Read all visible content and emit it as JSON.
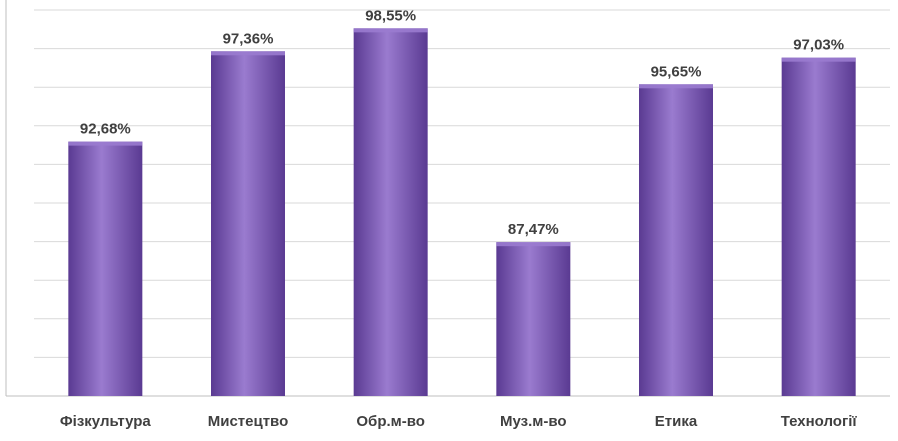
{
  "chart_data": {
    "type": "bar",
    "title": "",
    "xlabel": "",
    "ylabel": "",
    "categories": [
      "Фізкультура",
      "Мистецтво",
      "Обр.м-во",
      "Муз.м-во",
      "Етика",
      "Технології"
    ],
    "values": [
      92.68,
      97.36,
      98.55,
      87.47,
      95.65,
      97.03
    ],
    "value_labels": [
      "92,68%",
      "97,36%",
      "98,55%",
      "87,47%",
      "95,65%",
      "97,03%"
    ],
    "ylim": [
      79.5,
      99.5
    ],
    "grid": true,
    "legend": "none",
    "colors": {
      "bar_light": "#9a7bcf",
      "bar_mid": "#7e5bb8",
      "bar_dark": "#5a3a92",
      "gridline": "#d9d9d9",
      "axis": "#bfbfbf",
      "label": "#404040"
    }
  }
}
